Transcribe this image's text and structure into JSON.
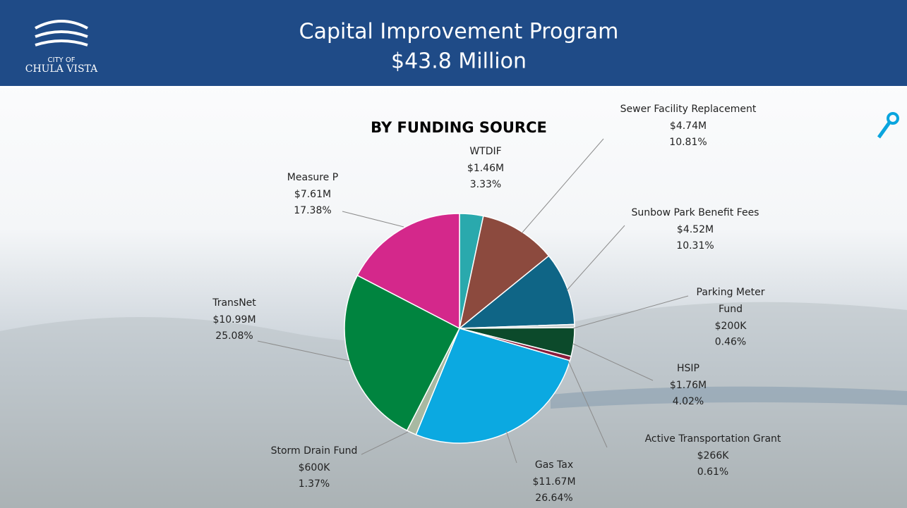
{
  "header": {
    "logo_line1": "CITY OF",
    "logo_line2": "CHULA VISTA",
    "title_line1": "Capital Improvement Program",
    "title_line2": "$43.8 Million"
  },
  "chart_data": {
    "type": "pie",
    "title": "BY FUNDING SOURCE",
    "categories": [
      "WTDIF",
      "Sewer Facility Replacement",
      "Sunbow Park Benefit Fees",
      "Parking Meter Fund",
      "HSIP",
      "Active Transportation Grant",
      "Gas Tax",
      "Storm Drain Fund",
      "TransNet",
      "Measure P"
    ],
    "values": [
      3.33,
      10.81,
      10.31,
      0.46,
      4.02,
      0.61,
      26.64,
      1.37,
      25.08,
      17.38
    ],
    "value_labels": [
      "3.33%",
      "10.81%",
      "10.31%",
      "0.46%",
      "4.02%",
      "0.61%",
      "26.64%",
      "1.37%",
      "25.08%",
      "17.38%"
    ],
    "amounts": [
      1460000,
      4740000,
      4520000,
      200000,
      1760000,
      266000,
      11670000,
      600000,
      10990000,
      7610000
    ],
    "amount_labels": [
      "$1.46M",
      "$4.74M",
      "$4.52M",
      "$200K",
      "$1.76M",
      "$266K",
      "$11.67M",
      "$600K",
      "$10.99M",
      "$7.61M"
    ],
    "colors": [
      "#2aa9ad",
      "#8c4a3e",
      "#0f6586",
      "#c9cfcf",
      "#0c4a2b",
      "#8a1c3c",
      "#0ba9e1",
      "#a8b9a2",
      "#00843f",
      "#d4288b"
    ]
  }
}
